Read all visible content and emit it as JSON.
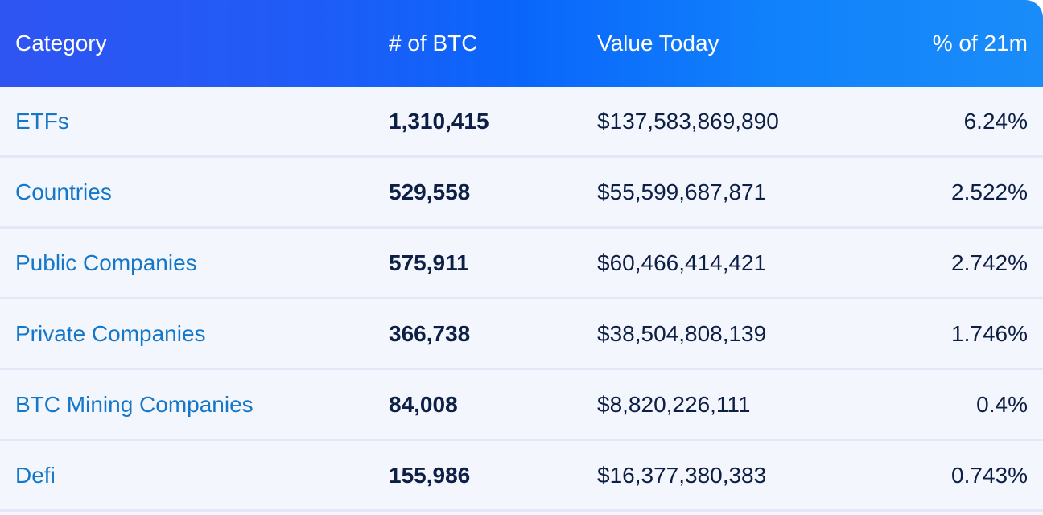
{
  "table": {
    "headers": [
      "Category",
      "# of BTC",
      "Value Today",
      "% of 21m"
    ],
    "rows": [
      {
        "category": "ETFs",
        "btc": "1,310,415",
        "value": "$137,583,869,890",
        "pct": "6.24%"
      },
      {
        "category": "Countries",
        "btc": "529,558",
        "value": "$55,599,687,871",
        "pct": "2.522%"
      },
      {
        "category": "Public Companies",
        "btc": "575,911",
        "value": "$60,466,414,421",
        "pct": "2.742%"
      },
      {
        "category": "Private Companies",
        "btc": "366,738",
        "value": "$38,504,808,139",
        "pct": "1.746%"
      },
      {
        "category": "BTC Mining Companies",
        "btc": "84,008",
        "value": "$8,820,226,111",
        "pct": "0.4%"
      },
      {
        "category": "Defi",
        "btc": "155,986",
        "value": "$16,377,380,383",
        "pct": "0.743%"
      }
    ]
  },
  "colors": {
    "header_gradient_start": "#2f54f2",
    "header_gradient_end": "#1a8cf9",
    "link": "#1477c9",
    "text_dark": "#0e1f45",
    "row_background": "#f3f6fd"
  }
}
